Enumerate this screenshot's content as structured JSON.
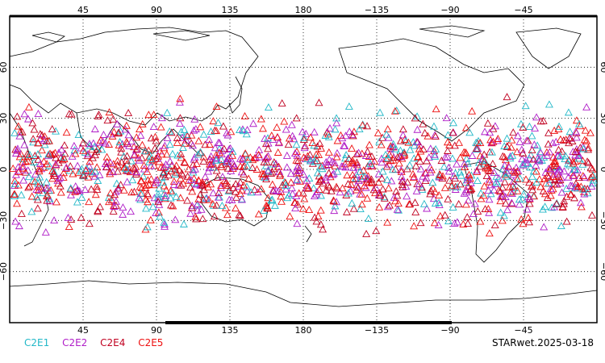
{
  "map": {
    "projection": "cylindrical",
    "lon_center": 180,
    "lat_range": [
      -90,
      90
    ],
    "gridlines": "dotted",
    "top_lon_labels": [
      "45",
      "90",
      "135",
      "180",
      "−135",
      "−90",
      "−45"
    ],
    "bottom_lon_labels": [
      "45",
      "90",
      "135",
      "180",
      "−135",
      "−90",
      "−45"
    ],
    "left_lat_labels": [
      "60",
      "30",
      "0",
      "−30",
      "−60"
    ],
    "right_lat_labels": [
      "60",
      "30",
      "0",
      "−30",
      "−60"
    ],
    "marker": "triangle-outline",
    "marker_lat_extent": [
      -45,
      45
    ]
  },
  "legend": {
    "items": [
      {
        "label": "C2E1",
        "color": "#22b8c8",
        "share": 0.18
      },
      {
        "label": "C2E2",
        "color": "#b01ec8",
        "share": 0.27
      },
      {
        "label": "C2E4",
        "color": "#c00020",
        "share": 0.25
      },
      {
        "label": "C2E5",
        "color": "#ee1010",
        "share": 0.3
      }
    ]
  },
  "stamp": "STARwet.2025-03-18"
}
